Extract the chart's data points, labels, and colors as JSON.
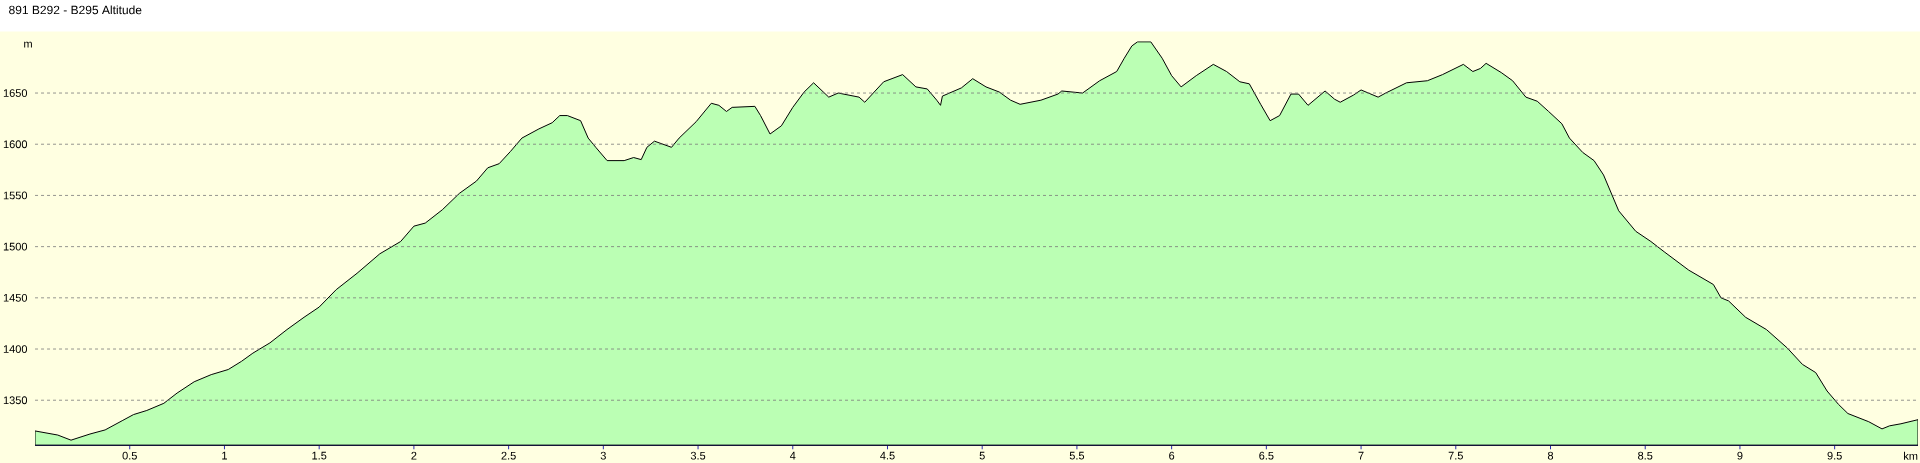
{
  "chart_data": {
    "type": "area",
    "title": "891 B292 - B295 Altitude",
    "xlabel": "km",
    "ylabel": "m",
    "color": "#bbffb4",
    "x": [
      0,
      0.12,
      0.19,
      0.29,
      0.37,
      0.46,
      0.52,
      0.59,
      0.68,
      0.75,
      0.84,
      0.93,
      1.02,
      1.09,
      1.15,
      1.24,
      1.33,
      1.42,
      1.5,
      1.59,
      1.7,
      1.82,
      1.93,
      2.0,
      2.06,
      2.15,
      2.24,
      2.33,
      2.39,
      2.45,
      2.51,
      2.57,
      2.66,
      2.73,
      2.77,
      2.81,
      2.88,
      2.92,
      2.96,
      3.02,
      3.11,
      3.16,
      3.2,
      3.23,
      3.27,
      3.36,
      3.4,
      3.49,
      3.57,
      3.61,
      3.65,
      3.68,
      3.8,
      3.83,
      3.88,
      3.94,
      4.0,
      4.06,
      4.11,
      4.19,
      4.24,
      4.35,
      4.38,
      4.48,
      4.58,
      4.65,
      4.71,
      4.76,
      4.78,
      4.79,
      4.89,
      4.95,
      5.02,
      5.09,
      5.15,
      5.2,
      5.31,
      5.4,
      5.42,
      5.53,
      5.62,
      5.71,
      5.75,
      5.79,
      5.82,
      5.89,
      5.95,
      6.0,
      6.05,
      6.13,
      6.22,
      6.29,
      6.36,
      6.41,
      6.47,
      6.52,
      6.57,
      6.63,
      6.67,
      6.72,
      6.81,
      6.86,
      6.89,
      6.96,
      7.0,
      7.09,
      7.13,
      7.24,
      7.35,
      7.43,
      7.54,
      7.59,
      7.63,
      7.66,
      7.74,
      7.8,
      7.87,
      7.93,
      7.99,
      8.06,
      8.1,
      8.17,
      8.23,
      8.28,
      8.36,
      8.45,
      8.53,
      8.6,
      8.73,
      8.86,
      8.9,
      8.94,
      9.03,
      9.14,
      9.25,
      9.33,
      9.4,
      9.46,
      9.52,
      9.57,
      9.68,
      9.75,
      9.79,
      9.85,
      9.94
    ],
    "values": [
      1320,
      1316,
      1311,
      1317,
      1321,
      1330,
      1336,
      1340,
      1347,
      1357,
      1368,
      1375,
      1380,
      1388,
      1396,
      1406,
      1419,
      1431,
      1441,
      1458,
      1474,
      1493,
      1505,
      1520,
      1523,
      1536,
      1552,
      1564,
      1577,
      1581,
      1593,
      1606,
      1615,
      1621,
      1628,
      1628,
      1623,
      1606,
      1597,
      1584,
      1584,
      1587,
      1585,
      1597,
      1603,
      1597,
      1606,
      1622,
      1640,
      1638,
      1632,
      1636,
      1637,
      1628,
      1610,
      1618,
      1636,
      1651,
      1660,
      1646,
      1650,
      1646,
      1641,
      1661,
      1668,
      1656,
      1654,
      1643,
      1638,
      1647,
      1655,
      1664,
      1656,
      1651,
      1643,
      1639,
      1643,
      1649,
      1652,
      1650,
      1662,
      1671,
      1684,
      1696,
      1700,
      1700,
      1684,
      1667,
      1656,
      1667,
      1678,
      1671,
      1661,
      1659,
      1639,
      1623,
      1628,
      1649,
      1649,
      1638,
      1652,
      1644,
      1641,
      1648,
      1653,
      1646,
      1650,
      1660,
      1662,
      1668,
      1678,
      1671,
      1674,
      1679,
      1670,
      1662,
      1646,
      1642,
      1632,
      1620,
      1606,
      1592,
      1584,
      1570,
      1535,
      1515,
      1505,
      1495,
      1477,
      1463,
      1450,
      1447,
      1431,
      1419,
      1401,
      1385,
      1377,
      1359,
      1346,
      1337,
      1329,
      1322,
      1325,
      1327,
      1331
    ],
    "xlim": [
      0,
      9.94
    ],
    "ylim": [
      1306,
      1710
    ],
    "xticks": [
      0.5,
      1,
      1.5,
      2,
      2.5,
      3,
      3.5,
      4,
      4.5,
      5,
      5.5,
      6,
      6.5,
      7,
      7.5,
      8,
      8.5,
      9,
      9.5
    ],
    "yticks": [
      1350,
      1400,
      1450,
      1500,
      1550,
      1600,
      1650
    ],
    "grid": "y"
  }
}
